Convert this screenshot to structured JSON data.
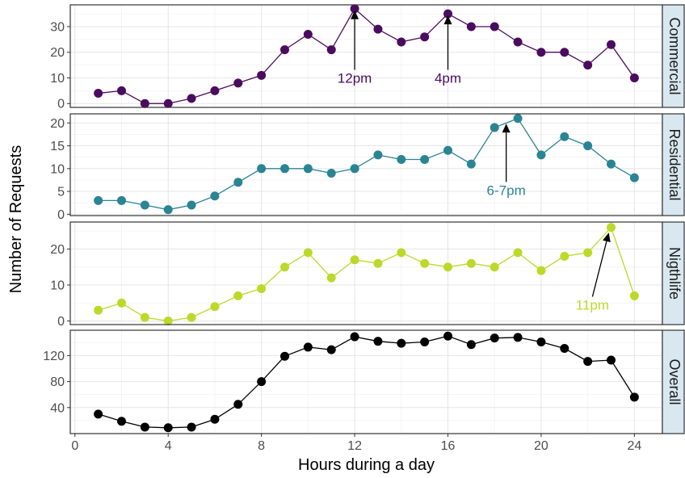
{
  "chart_data": {
    "type": "line",
    "xlabel": "Hours during a day",
    "ylabel": "Number of Requests",
    "xlim": [
      -0.2,
      25.2
    ],
    "x_ticks": [
      0,
      4,
      8,
      12,
      16,
      20,
      24
    ],
    "x": [
      1,
      2,
      3,
      4,
      5,
      6,
      7,
      8,
      9,
      10,
      11,
      12,
      13,
      14,
      15,
      16,
      17,
      18,
      19,
      20,
      21,
      22,
      23,
      24
    ],
    "grid": true,
    "panels": [
      {
        "name": "Commercial",
        "color": "#4b0c5f",
        "ylim": [
          -1.5,
          38.5
        ],
        "y_ticks": [
          0,
          10,
          20,
          30
        ],
        "values": [
          4,
          5,
          0,
          0,
          2,
          5,
          8,
          11,
          21,
          27,
          21,
          37,
          29,
          24,
          26,
          35,
          30,
          30,
          24,
          20,
          20,
          15,
          23,
          10
        ],
        "annotations": [
          {
            "label": "12pm",
            "x": 12,
            "y": 37,
            "text_x": 12,
            "text_y": 10
          },
          {
            "label": "4pm",
            "x": 16,
            "y": 35,
            "text_x": 16,
            "text_y": 10
          }
        ]
      },
      {
        "name": "Residential",
        "color": "#2a8493",
        "ylim": [
          -0.3,
          22
        ],
        "y_ticks": [
          0,
          5,
          10,
          15,
          20
        ],
        "values": [
          3,
          3,
          2,
          1,
          2,
          4,
          7,
          10,
          10,
          10,
          9,
          10,
          13,
          12,
          12,
          14,
          11,
          19,
          21,
          13,
          17,
          15,
          11,
          8
        ],
        "annotations": [
          {
            "label": "6-7pm",
            "x": 18.5,
            "y": 20.2,
            "text_x": 18.5,
            "text_y": 5.3
          }
        ]
      },
      {
        "name": "Nigthlife",
        "color": "#bcd92a",
        "ylim": [
          -1,
          27.5
        ],
        "y_ticks": [
          0,
          10,
          20
        ],
        "values": [
          3,
          5,
          1,
          0,
          1,
          4,
          7,
          9,
          15,
          19,
          12,
          17,
          16,
          19,
          16,
          15,
          16,
          15,
          19,
          14,
          18,
          19,
          26,
          7
        ],
        "annotations": [
          {
            "label": "11pm",
            "x": 22.9,
            "y": 25,
            "text_x": 22.2,
            "text_y": 4.5
          }
        ]
      },
      {
        "name": "Overall",
        "color": "#000000",
        "ylim": [
          0,
          159
        ],
        "y_ticks": [
          40,
          80,
          120
        ],
        "values": [
          30,
          19,
          10,
          9,
          10,
          22,
          45,
          80,
          119,
          133,
          129,
          149,
          142,
          139,
          141,
          150,
          137,
          147,
          148,
          141,
          131,
          111,
          113,
          56
        ],
        "annotations": []
      }
    ]
  }
}
